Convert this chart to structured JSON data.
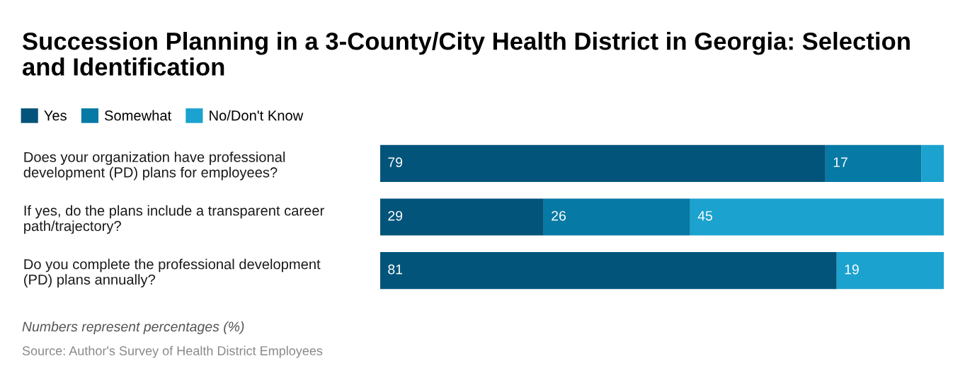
{
  "chart_data": {
    "type": "bar",
    "orientation": "horizontal",
    "stacked": true,
    "title": "Succession Planning in a 3-County/City Health District in Georgia: Selection and Identification",
    "categories": [
      "Does your organization have professional\ndevelopment (PD) plans for employees?",
      "If yes, do the plans include a transparent career\npath/trajectory?",
      "Do you complete the professional development\n(PD) plans annually?"
    ],
    "series": [
      {
        "name": "Yes",
        "color": "#03547a",
        "values": [
          79,
          29,
          81
        ],
        "value_labels": [
          "79",
          "29",
          "81"
        ]
      },
      {
        "name": "Somewhat",
        "color": "#0679a4",
        "values": [
          17,
          26,
          0
        ],
        "value_labels": [
          "17",
          "26",
          null
        ]
      },
      {
        "name": "No/Don't Know",
        "color": "#1ba2cf",
        "values": [
          4,
          45,
          19
        ],
        "value_labels": [
          null,
          "45",
          "19"
        ]
      }
    ],
    "xlim": [
      0,
      100
    ],
    "tick_labels": "y",
    "grid": false,
    "legend": "top left",
    "annotations": [
      "Numbers represent percentages (%)",
      "Source: Author's Survey of Health District Employees"
    ]
  }
}
